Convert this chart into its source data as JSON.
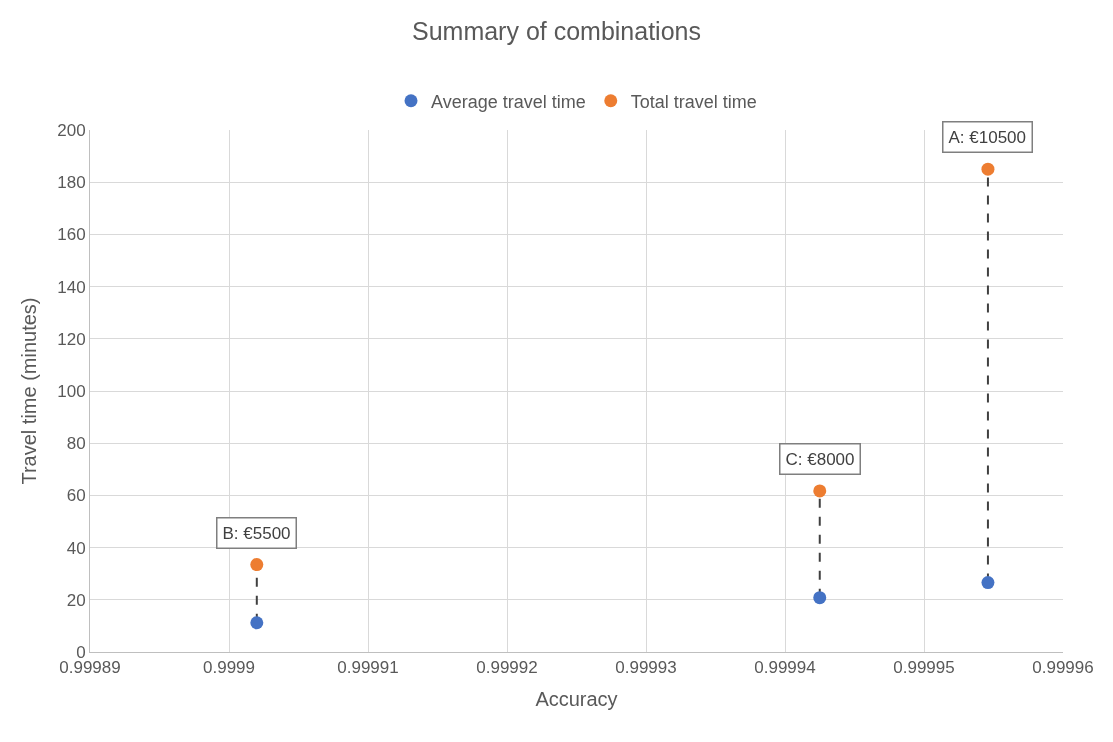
{
  "chart_data": {
    "type": "scatter",
    "title": "Summary of combinations",
    "xlabel": "Accuracy",
    "ylabel": "Travel time (minutes)",
    "series": [
      {
        "type": "line",
        "color": "#404040",
        "line_style": "dashed",
        "marker": "none",
        "x": [
          0.999902,
          0.999902
        ],
        "values": [
          11.2,
          33.5
        ]
      },
      {
        "type": "line",
        "color": "#404040",
        "line_style": "dashed",
        "marker": "none",
        "x": [
          0.9999425,
          0.9999425
        ],
        "values": [
          20.8,
          61.7
        ]
      },
      {
        "type": "line",
        "color": "#404040",
        "line_style": "dashed",
        "marker": "none",
        "x": [
          0.9999546,
          0.9999546
        ],
        "values": [
          26.6,
          185
        ]
      },
      {
        "name": "Average travel time",
        "color": "#4472c4",
        "marker": "circle",
        "x": [
          0.999902,
          0.9999425,
          0.9999546
        ],
        "values": [
          11.2,
          20.8,
          26.6
        ]
      },
      {
        "name": "Total travel time",
        "color": "#ed7d31",
        "marker": "circle",
        "x": [
          0.999902,
          0.9999425,
          0.9999546
        ],
        "values": [
          33.5,
          61.7,
          185
        ]
      }
    ],
    "annotations": [
      {
        "text": "B: €5500",
        "x": 0.999902,
        "y": 33.5
      },
      {
        "text": "C: €8000",
        "x": 0.9999425,
        "y": 61.7
      },
      {
        "text": "A: €10500",
        "x": 0.9999546,
        "y": 185
      }
    ],
    "xlim": [
      0.99989,
      0.99996
    ],
    "xticks": [
      0.99989,
      0.9999,
      0.99991,
      0.99992,
      0.99993,
      0.99994,
      0.99995,
      0.99996
    ],
    "ylim": [
      0,
      200
    ],
    "yticks": [
      0,
      20,
      40,
      60,
      80,
      100,
      120,
      140,
      160,
      180,
      200
    ],
    "grid": true,
    "legend": "top"
  }
}
